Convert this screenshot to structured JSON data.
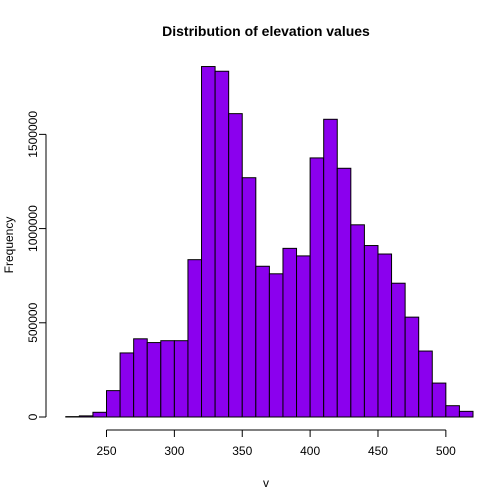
{
  "chart_data": {
    "type": "bar",
    "title": "Distribution of elevation values",
    "xlabel": "v",
    "ylabel": "Frequency",
    "bar_color": "#8B00EE",
    "bin_width": 10,
    "bin_start": 220,
    "xlim": [
      215,
      520
    ],
    "ylim": [
      0,
      1900000
    ],
    "x_ticks": [
      250,
      300,
      350,
      400,
      450,
      500
    ],
    "y_ticks": [
      0,
      500000,
      1000000,
      1500000
    ],
    "values": [
      2000,
      6000,
      25000,
      140000,
      340000,
      415000,
      395000,
      405000,
      405000,
      835000,
      1860000,
      1835000,
      1610000,
      1270000,
      800000,
      760000,
      895000,
      855000,
      1375000,
      1580000,
      1320000,
      1020000,
      910000,
      865000,
      710000,
      530000,
      350000,
      180000,
      60000,
      30000
    ]
  }
}
